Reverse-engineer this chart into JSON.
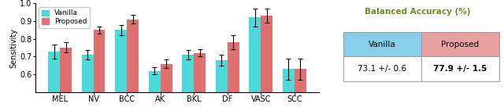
{
  "categories": [
    "MEL",
    "NV",
    "BCC",
    "AK",
    "BKL",
    "DF",
    "VASC",
    "SCC"
  ],
  "vanilla_values": [
    0.73,
    0.71,
    0.85,
    0.62,
    0.71,
    0.68,
    0.92,
    0.63
  ],
  "vanilla_errors": [
    0.04,
    0.025,
    0.03,
    0.02,
    0.025,
    0.03,
    0.05,
    0.06
  ],
  "proposed_values": [
    0.752,
    0.85,
    0.91,
    0.66,
    0.72,
    0.78,
    0.93,
    0.63
  ],
  "proposed_errors": [
    0.03,
    0.02,
    0.025,
    0.025,
    0.02,
    0.04,
    0.04,
    0.06
  ],
  "vanilla_color": "#4DD9D9",
  "proposed_color": "#E07070",
  "ylabel": "Sensitivity",
  "ylim": [
    0.5,
    1.0
  ],
  "yticks": [
    0.6,
    0.7,
    0.8,
    0.9,
    1.0
  ],
  "ytick_labels": [
    "0.6",
    "0.7",
    "0.8",
    "0.9",
    "1.0"
  ],
  "legend_labels": [
    "Vanilla",
    "Proposed"
  ],
  "table_title": "Balanced Accuracy (%)",
  "table_vanilla_label": "Vanilla",
  "table_proposed_label": "Proposed",
  "table_vanilla_value": "73.1 +/- 0.6",
  "table_proposed_value": "77.9 +/- 1.5",
  "table_vanilla_color": "#87CEEB",
  "table_proposed_color": "#E8A0A0",
  "table_title_color": "#6B8E23",
  "bar_width": 0.35
}
